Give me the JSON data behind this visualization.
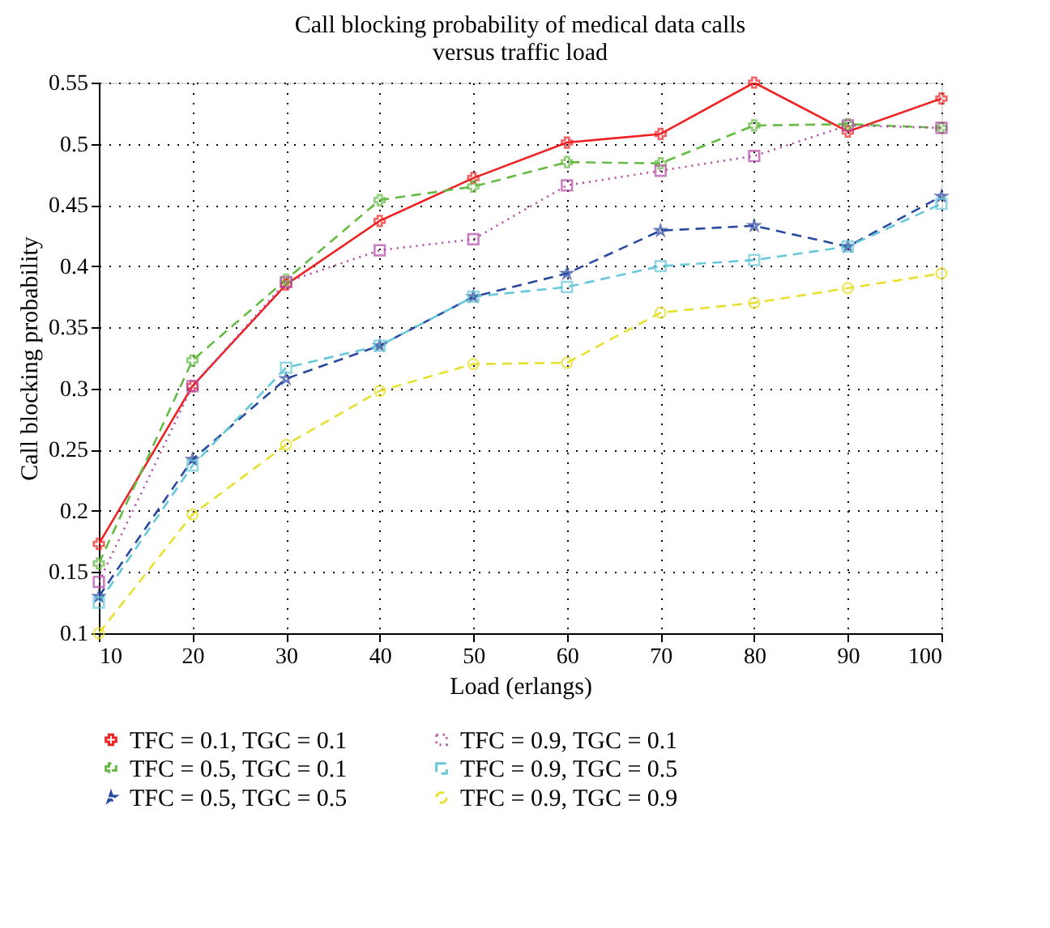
{
  "chart_data": {
    "type": "line",
    "title": "Call blocking probability of medical data calls\nversus traffic load",
    "xlabel": "Load (erlangs)",
    "ylabel": "Call blocking probability",
    "x": [
      10,
      20,
      30,
      40,
      50,
      60,
      70,
      80,
      90,
      100
    ],
    "series": [
      {
        "name": "TFC = 0.1, TGC = 0.1",
        "color": "#ee2222",
        "line_style": "solid",
        "marker": "cross",
        "values": [
          0.173,
          0.302,
          0.385,
          0.437,
          0.472,
          0.501,
          0.508,
          0.55,
          0.51,
          0.537
        ]
      },
      {
        "name": "TFC = 0.5, TGC = 0.1",
        "color": "#66bb44",
        "line_style": "dashed",
        "marker": "cross",
        "values": [
          0.157,
          0.323,
          0.389,
          0.454,
          0.465,
          0.485,
          0.484,
          0.515,
          0.516,
          0.513
        ]
      },
      {
        "name": "TFC = 0.5, TGC = 0.5",
        "color": "#2a4aa0",
        "line_style": "dashed",
        "marker": "star",
        "values": [
          0.13,
          0.242,
          0.308,
          0.335,
          0.375,
          0.394,
          0.429,
          0.433,
          0.416,
          0.457
        ]
      },
      {
        "name": "TFC = 0.9, TGC = 0.1",
        "color": "#b44aa8",
        "line_style": "dotted",
        "marker": "square",
        "values": [
          0.142,
          0.302,
          0.387,
          0.413,
          0.422,
          0.466,
          0.478,
          0.49,
          0.515,
          0.513
        ]
      },
      {
        "name": "TFC = 0.9, TGC = 0.5",
        "color": "#66c8d8",
        "line_style": "dashed",
        "marker": "square",
        "values": [
          0.125,
          0.237,
          0.317,
          0.335,
          0.375,
          0.383,
          0.4,
          0.405,
          0.416,
          0.451
        ]
      },
      {
        "name": "TFC = 0.9, TGC = 0.9",
        "color": "#e8e030",
        "line_style": "dashed",
        "marker": "circle",
        "values": [
          0.1,
          0.197,
          0.254,
          0.298,
          0.32,
          0.321,
          0.362,
          0.37,
          0.382,
          0.394
        ]
      }
    ],
    "xlim": [
      10,
      100
    ],
    "xticks": [
      10,
      20,
      30,
      40,
      50,
      60,
      70,
      80,
      90,
      100
    ],
    "ylim": [
      0.1,
      0.55
    ],
    "yticks": [
      0.1,
      0.15,
      0.2,
      0.25,
      0.3,
      0.35,
      0.4,
      0.45,
      0.5,
      0.55
    ],
    "grid": true,
    "legend": "bottom"
  }
}
